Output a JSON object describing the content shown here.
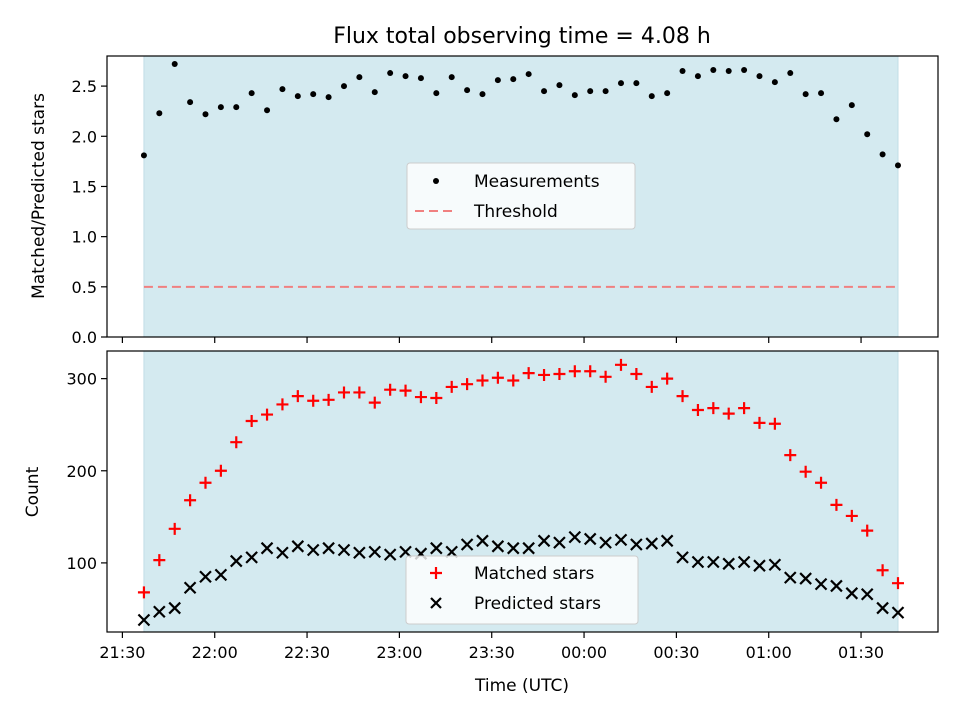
{
  "chart_data": [
    {
      "type": "scatter",
      "title": "Flux total observing time = 4.08 h",
      "xlabel": "",
      "ylabel": "Matched/Predicted stars",
      "ylim": [
        0,
        2.8
      ],
      "yticks": [
        0.0,
        0.5,
        1.0,
        1.5,
        2.0,
        2.5
      ],
      "ytick_labels": [
        "0.0",
        "0.5",
        "1.0",
        "1.5",
        "2.0",
        "2.5"
      ],
      "xlim": [
        "21:25",
        "01:55"
      ],
      "shaded_span": [
        "21:37",
        "01:42"
      ],
      "shade_color": "#d4eaf0",
      "threshold": 0.5,
      "threshold_color": "#f08080",
      "marker_color": "#000000",
      "legend": [
        "Measurements",
        "Threshold"
      ],
      "legend_position": "center",
      "grid": false,
      "series": [
        {
          "name": "Measurements",
          "x": [
            "21:37",
            "21:42",
            "21:47",
            "21:52",
            "21:57",
            "22:02",
            "22:07",
            "22:12",
            "22:17",
            "22:22",
            "22:27",
            "22:32",
            "22:37",
            "22:42",
            "22:47",
            "22:52",
            "22:57",
            "23:02",
            "23:07",
            "23:12",
            "23:17",
            "23:22",
            "23:27",
            "23:32",
            "23:37",
            "23:42",
            "23:47",
            "23:52",
            "23:57",
            "00:02",
            "00:07",
            "00:12",
            "00:17",
            "00:22",
            "00:27",
            "00:32",
            "00:37",
            "00:42",
            "00:47",
            "00:52",
            "00:57",
            "01:02",
            "01:07",
            "01:12",
            "01:17",
            "01:22",
            "01:27",
            "01:32",
            "01:37",
            "01:42"
          ],
          "y": [
            1.81,
            2.23,
            2.72,
            2.34,
            2.22,
            2.29,
            2.29,
            2.43,
            2.26,
            2.47,
            2.4,
            2.42,
            2.39,
            2.5,
            2.59,
            2.44,
            2.63,
            2.6,
            2.58,
            2.43,
            2.59,
            2.46,
            2.42,
            2.56,
            2.57,
            2.62,
            2.45,
            2.51,
            2.41,
            2.45,
            2.45,
            2.53,
            2.53,
            2.4,
            2.43,
            2.65,
            2.6,
            2.66,
            2.65,
            2.66,
            2.6,
            2.54,
            2.63,
            2.42,
            2.43,
            2.17,
            2.31,
            2.02,
            1.82,
            1.71
          ]
        }
      ]
    },
    {
      "type": "scatter",
      "title": "",
      "xlabel": "Time (UTC)",
      "ylabel": "Count",
      "ylim": [
        25,
        330
      ],
      "yticks": [
        100,
        200,
        300
      ],
      "ytick_labels": [
        "100",
        "200",
        "300"
      ],
      "xlim": [
        "21:25",
        "01:55"
      ],
      "xticks": [
        "21:30",
        "22:00",
        "22:30",
        "23:00",
        "23:30",
        "00:00",
        "00:30",
        "01:00",
        "01:30"
      ],
      "xtick_labels": [
        "21:30",
        "22:00",
        "22:30",
        "23:00",
        "23:30",
        "00:00",
        "00:30",
        "01:00",
        "01:30"
      ],
      "shaded_span": [
        "21:37",
        "01:42"
      ],
      "shade_color": "#d4eaf0",
      "legend": [
        "Matched stars",
        "Predicted stars"
      ],
      "legend_position": "lower center",
      "grid": false,
      "series": [
        {
          "name": "Matched stars",
          "marker": "plus",
          "color": "#ff0000",
          "x": [
            "21:37",
            "21:42",
            "21:47",
            "21:52",
            "21:57",
            "22:02",
            "22:07",
            "22:12",
            "22:17",
            "22:22",
            "22:27",
            "22:32",
            "22:37",
            "22:42",
            "22:47",
            "22:52",
            "22:57",
            "23:02",
            "23:07",
            "23:12",
            "23:17",
            "23:22",
            "23:27",
            "23:32",
            "23:37",
            "23:42",
            "23:47",
            "23:52",
            "23:57",
            "00:02",
            "00:07",
            "00:12",
            "00:17",
            "00:22",
            "00:27",
            "00:32",
            "00:37",
            "00:42",
            "00:47",
            "00:52",
            "00:57",
            "01:02",
            "01:07",
            "01:12",
            "01:17",
            "01:22",
            "01:27",
            "01:32",
            "01:37",
            "01:42"
          ],
          "y": [
            68,
            103,
            137,
            168,
            187,
            200,
            231,
            254,
            261,
            272,
            281,
            276,
            277,
            285,
            285,
            274,
            288,
            287,
            280,
            279,
            291,
            294,
            298,
            301,
            298,
            306,
            304,
            305,
            308,
            308,
            302,
            315,
            305,
            291,
            300,
            281,
            266,
            268,
            262,
            268,
            252,
            251,
            217,
            199,
            187,
            163,
            151,
            135,
            92,
            78
          ]
        },
        {
          "name": "Predicted stars",
          "marker": "x",
          "color": "#000000",
          "x": [
            "21:37",
            "21:42",
            "21:47",
            "21:52",
            "21:57",
            "22:02",
            "22:07",
            "22:12",
            "22:17",
            "22:22",
            "22:27",
            "22:32",
            "22:37",
            "22:42",
            "22:47",
            "22:52",
            "22:57",
            "23:02",
            "23:07",
            "23:12",
            "23:17",
            "23:22",
            "23:27",
            "23:32",
            "23:37",
            "23:42",
            "23:47",
            "23:52",
            "23:57",
            "00:02",
            "00:07",
            "00:12",
            "00:17",
            "00:22",
            "00:27",
            "00:32",
            "00:37",
            "00:42",
            "00:47",
            "00:52",
            "00:57",
            "01:02",
            "01:07",
            "01:12",
            "01:17",
            "01:22",
            "01:27",
            "01:32",
            "01:37",
            "01:42"
          ],
          "y": [
            38,
            47,
            51,
            73,
            85,
            87,
            102,
            106,
            116,
            111,
            118,
            114,
            116,
            114,
            111,
            112,
            109,
            112,
            110,
            116,
            112,
            120,
            124,
            118,
            116,
            116,
            124,
            122,
            128,
            126,
            122,
            125,
            120,
            121,
            124,
            106,
            101,
            101,
            99,
            101,
            97,
            98,
            84,
            83,
            77,
            75,
            67,
            66,
            51,
            46
          ]
        }
      ]
    }
  ]
}
